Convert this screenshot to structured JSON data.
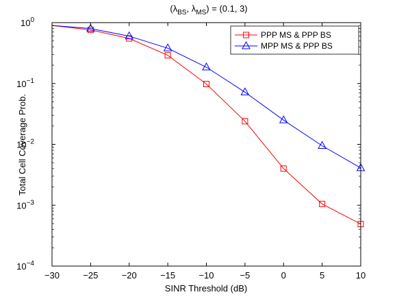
{
  "chart_data": {
    "type": "line",
    "title": {
      "lambda": "λ",
      "sub_bs": "BS",
      "sep": ", ",
      "sub_ms": "MS",
      "rest": ") = (0.1, 3)",
      "open": "("
    },
    "xlabel": "SINR Threshold (dB)",
    "ylabel": "Total Cell Coverage Prob.",
    "xlim": [
      -30,
      10
    ],
    "ylim": [
      0.0001,
      1
    ],
    "yscale": "log",
    "x_ticks": [
      -30,
      -25,
      -20,
      -15,
      -10,
      -5,
      0,
      5,
      10
    ],
    "x_tick_labels": [
      "−30",
      "−25",
      "−20",
      "−15",
      "−10",
      "−5",
      "0",
      "5",
      "10"
    ],
    "y_ticks": [
      {
        "value": 1,
        "base": "10",
        "exp": "0"
      },
      {
        "value": 0.1,
        "base": "10",
        "exp": "−1"
      },
      {
        "value": 0.01,
        "base": "10",
        "exp": "−2"
      },
      {
        "value": 0.001,
        "base": "10",
        "exp": "−3"
      },
      {
        "value": 0.0001,
        "base": "10",
        "exp": "−4"
      }
    ],
    "legend_placement": "top-right",
    "grid": false,
    "series": [
      {
        "name": "PPP MS & PPP BS",
        "color": "#ff0000",
        "marker": "square",
        "x": [
          -30,
          -25,
          -20,
          -15,
          -10,
          -5,
          0,
          5,
          10
        ],
        "y": [
          0.9,
          0.76,
          0.55,
          0.29,
          0.098,
          0.024,
          0.004,
          0.00105,
          0.00049
        ],
        "marker_x": [
          -25,
          -20,
          -15,
          -10,
          -5,
          0,
          5,
          10
        ]
      },
      {
        "name": "MPP MS & PPP BS",
        "color": "#0000ff",
        "marker": "triangle",
        "x": [
          -30,
          -25,
          -20,
          -15,
          -10,
          -5,
          0,
          5,
          10
        ],
        "y": [
          0.9,
          0.8,
          0.6,
          0.38,
          0.185,
          0.072,
          0.025,
          0.0095,
          0.0041
        ],
        "marker_x": [
          -25,
          -20,
          -15,
          -10,
          -5,
          0,
          5,
          10
        ]
      }
    ]
  }
}
